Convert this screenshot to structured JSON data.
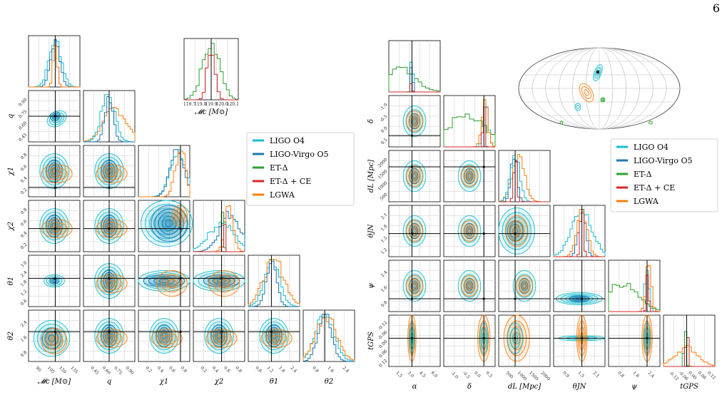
{
  "page_number": "6",
  "colors": {
    "LIGO O4": "#17becf",
    "LIGO-Virgo O5": "#1f77b4",
    "ET-Δ": "#2ca02c",
    "ET-Δ + CE": "#d62728",
    "LGWA": "#ff7f0e",
    "truth": "#000000"
  },
  "legend": [
    "LIGO O4",
    "LIGO-Virgo O5",
    "ET-Δ",
    "ET-Δ + CE",
    "LGWA"
  ],
  "chart_data": [
    {
      "type": "corner",
      "name": "intrinsic-corner",
      "parameters": [
        {
          "label": "𝓜c [M⊙]",
          "ticks": [
            "90",
            "105",
            "120",
            "135"
          ]
        },
        {
          "label": "q",
          "ticks": [
            "0.45",
            "0.60",
            "0.75",
            "0.90"
          ]
        },
        {
          "label": "χ1",
          "ticks": [
            "0.2",
            "0.4",
            "0.6",
            "0.8"
          ]
        },
        {
          "label": "χ2",
          "ticks": [
            "0.2",
            "0.4",
            "0.6",
            "0.8"
          ]
        },
        {
          "label": "θ1",
          "ticks": [
            "0.6",
            "1.2",
            "1.8",
            "2.4"
          ]
        },
        {
          "label": "θ2",
          "ticks": [
            "0.8",
            "1.6",
            "2.4"
          ]
        }
      ],
      "y_ticks": {
        "q": [
          "0.45",
          "0.60",
          "0.75",
          "0.90"
        ],
        "χ1": [
          "0.2",
          "0.4",
          "0.6",
          "0.8"
        ],
        "χ2": [
          "0.2",
          "0.4",
          "0.6",
          "0.8"
        ],
        "θ1": [
          "0.6",
          "1.2",
          "1.8",
          "2.4",
          "3.0"
        ],
        "θ2": [
          "0.8",
          "1.6",
          "2.4"
        ]
      },
      "truths": [
        120,
        0.6,
        0.8,
        0.7,
        1.5,
        0.6
      ],
      "inset": {
        "label": "𝓜c [M⊙]",
        "ticks": [
          "119.7",
          "119.8",
          "119.9",
          "120.0",
          "120.1"
        ]
      }
    },
    {
      "type": "corner",
      "name": "extrinsic-corner",
      "parameters": [
        {
          "label": "α",
          "ticks": [
            "1.5",
            "3.0",
            "4.5",
            "6.0"
          ]
        },
        {
          "label": "δ",
          "ticks": [
            "-1.0",
            "-0.5",
            "0.0",
            "0.5"
          ]
        },
        {
          "label": "dL [Mpc]",
          "ticks": [
            "500",
            "1000",
            "1500",
            "2000"
          ]
        },
        {
          "label": "θJN",
          "ticks": [
            "0.9",
            "1.5",
            "2.1"
          ]
        },
        {
          "label": "ψ",
          "ticks": [
            "0.8",
            "1.6",
            "2.4"
          ]
        },
        {
          "label": "tGPS",
          "ticks": [
            "-0.12",
            "-0.06",
            "0.00",
            "0.06",
            "0.12"
          ]
        }
      ],
      "y_ticks": {
        "δ": [
          "0.5",
          "0.0",
          "-0.5",
          "-1.0"
        ],
        "dL [Mpc]": [
          "500",
          "1000",
          "1500",
          "2000"
        ],
        "θJN": [
          "1.2",
          "1.5",
          "1.8",
          "2.1"
        ],
        "ψ": [
          "0.8",
          "1.6",
          "2.4"
        ],
        "tGPS": [
          "0.12",
          "0.06",
          "0.00",
          "-0.06",
          "-0.12"
        ]
      },
      "truths": [
        3.0,
        0.3,
        800,
        1.5,
        2.4,
        0.0
      ],
      "skymap": {
        "projection": "mollweide"
      }
    }
  ]
}
